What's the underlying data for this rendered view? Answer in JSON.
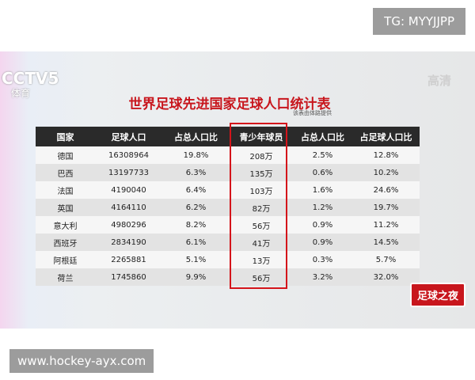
{
  "watermark": "TG: MYYJJPP",
  "channel": {
    "logo": "CCTV5",
    "sub": "体育"
  },
  "hd_badge": "高清",
  "title": "世界足球先进国家足球人口统计表",
  "source": "该表由体路提供",
  "table": {
    "header": [
      "国家",
      "足球人口",
      "占总人口比",
      "青少年球员",
      "占总人口比",
      "占足球人口比"
    ],
    "rows": [
      [
        "德国",
        "16308964",
        "19.8%",
        "208万",
        "2.5%",
        "12.8%"
      ],
      [
        "巴西",
        "13197733",
        "6.3%",
        "135万",
        "0.6%",
        "10.2%"
      ],
      [
        "法国",
        "4190040",
        "6.4%",
        "103万",
        "1.6%",
        "24.6%"
      ],
      [
        "英国",
        "4164110",
        "6.2%",
        "82万",
        "1.2%",
        "19.7%"
      ],
      [
        "意大利",
        "4980296",
        "8.2%",
        "56万",
        "0.9%",
        "11.2%"
      ],
      [
        "西班牙",
        "2834190",
        "6.1%",
        "41万",
        "0.9%",
        "14.5%"
      ],
      [
        "阿根廷",
        "2265881",
        "5.1%",
        "13万",
        "0.3%",
        "5.7%"
      ],
      [
        "荷兰",
        "1745860",
        "9.9%",
        "56万",
        "3.2%",
        "32.0%"
      ]
    ]
  },
  "program_badge": "足球之夜",
  "site_url": "www.hockey-ayx.com"
}
